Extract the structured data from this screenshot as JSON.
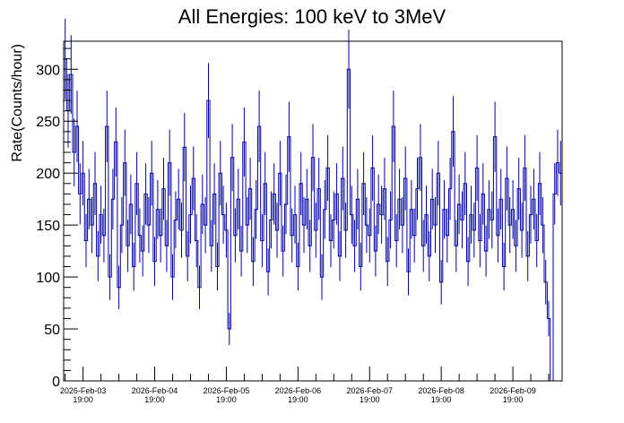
{
  "chart_data": {
    "type": "line",
    "title": "All Energies:  100 keV to 3MeV",
    "xlabel": "",
    "ylabel": "Rate(Counts/hour)",
    "ylim": [
      0,
      327
    ],
    "xlim": [
      "2026-02-03 12:30",
      "2026-02-10 11:30"
    ],
    "y_ticks": [
      "0",
      "50",
      "100",
      "150",
      "200",
      "250",
      "300"
    ],
    "x_ticks": [
      {
        "date": "2026-Feb-03",
        "time": "19:00"
      },
      {
        "date": "2026-Feb-04",
        "time": "19:00"
      },
      {
        "date": "2026-Feb-05",
        "time": "19:00"
      },
      {
        "date": "2026-Feb-06",
        "time": "19:00"
      },
      {
        "date": "2026-Feb-07",
        "time": "19:00"
      },
      {
        "date": "2026-Feb-08",
        "time": "19:00"
      },
      {
        "date": "2026-Feb-09",
        "time": "19:00"
      }
    ],
    "x_start": "2026-02-03 12:30",
    "bin_hours": 1,
    "grid": false,
    "color": "#0000a0",
    "values": [
      310,
      260,
      295,
      220,
      245,
      180,
      200,
      135,
      175,
      150,
      190,
      120,
      160,
      140,
      245,
      100,
      175,
      230,
      90,
      150,
      210,
      130,
      170,
      110,
      190,
      140,
      125,
      180,
      150,
      200,
      115,
      165,
      140,
      185,
      130,
      210,
      100,
      155,
      175,
      145,
      225,
      120,
      160,
      195,
      135,
      90,
      170,
      150,
      270,
      130,
      180,
      110,
      200,
      160,
      145,
      50,
      215,
      140,
      175,
      125,
      230,
      150,
      185,
      115,
      165,
      245,
      135,
      190,
      105,
      155,
      180,
      145,
      200,
      125,
      170,
      235,
      140,
      160,
      110,
      190,
      150,
      175,
      130,
      215,
      145,
      185,
      100,
      165,
      205,
      135,
      155,
      180,
      120,
      195,
      145,
      300,
      160,
      130,
      175,
      110,
      190,
      150,
      140,
      205,
      125,
      170,
      160,
      185,
      115,
      155,
      245,
      135,
      175,
      150,
      195,
      105,
      165,
      140,
      185,
      215,
      130,
      160,
      120,
      175,
      150,
      200,
      95,
      165,
      140,
      185,
      240,
      130,
      170,
      155,
      190,
      115,
      160,
      145,
      205,
      135,
      180,
      125,
      165,
      155,
      235,
      140,
      175,
      110,
      195,
      150,
      165,
      130,
      185,
      145,
      205,
      120,
      160,
      175,
      135,
      190,
      150,
      95,
      60,
      0,
      180,
      210,
      200
    ]
  }
}
